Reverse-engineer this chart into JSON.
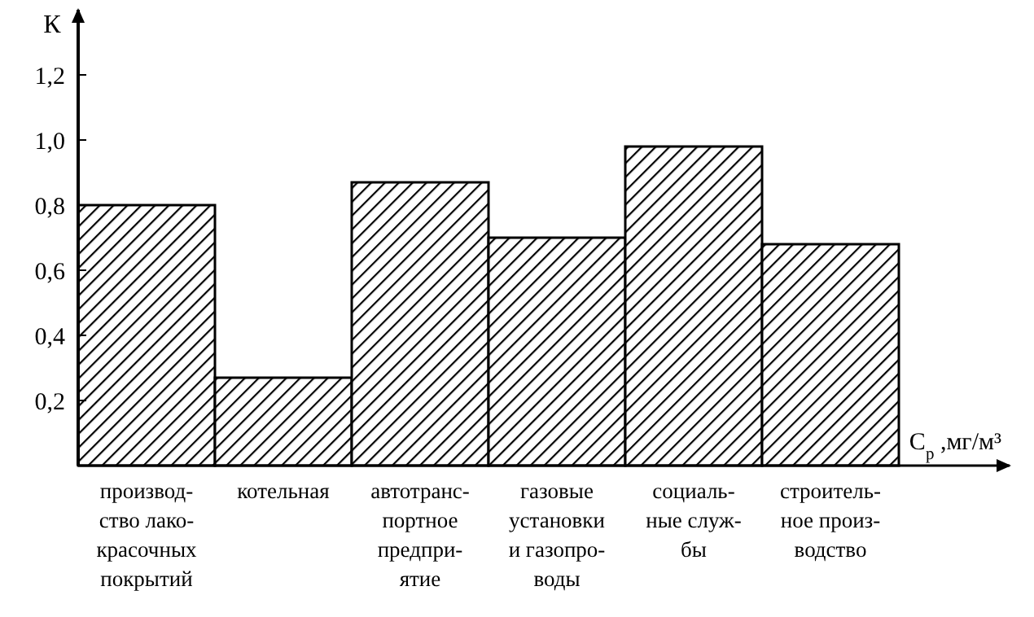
{
  "chart_data": {
    "type": "bar",
    "categories": [
      "производ-\nство лако-\nкрасочных\nпокрытий",
      "котельная",
      "автотранс-\nпортное\nпредпри-\nятие",
      "газовые\nустановки\nи газопро-\nводы",
      "социаль-\nные служ-\nбы",
      "строитель-\nное произ-\nводство"
    ],
    "values": [
      0.8,
      0.27,
      0.87,
      0.7,
      0.98,
      0.68
    ],
    "color": "#000000",
    "ylabel": "К",
    "xlabel": "C$_{р}$ ,мг/м³",
    "ylim": [
      0,
      1.39
    ],
    "yticks": [
      {
        "value": 0.2,
        "label": "0,2"
      },
      {
        "value": 0.4,
        "label": "0,4"
      },
      {
        "value": 0.6,
        "label": "0,6"
      },
      {
        "value": 0.8,
        "label": "0,8"
      },
      {
        "value": 1.0,
        "label": "1,0"
      },
      {
        "value": 1.2,
        "label": "1,2"
      }
    ],
    "grid": false
  }
}
